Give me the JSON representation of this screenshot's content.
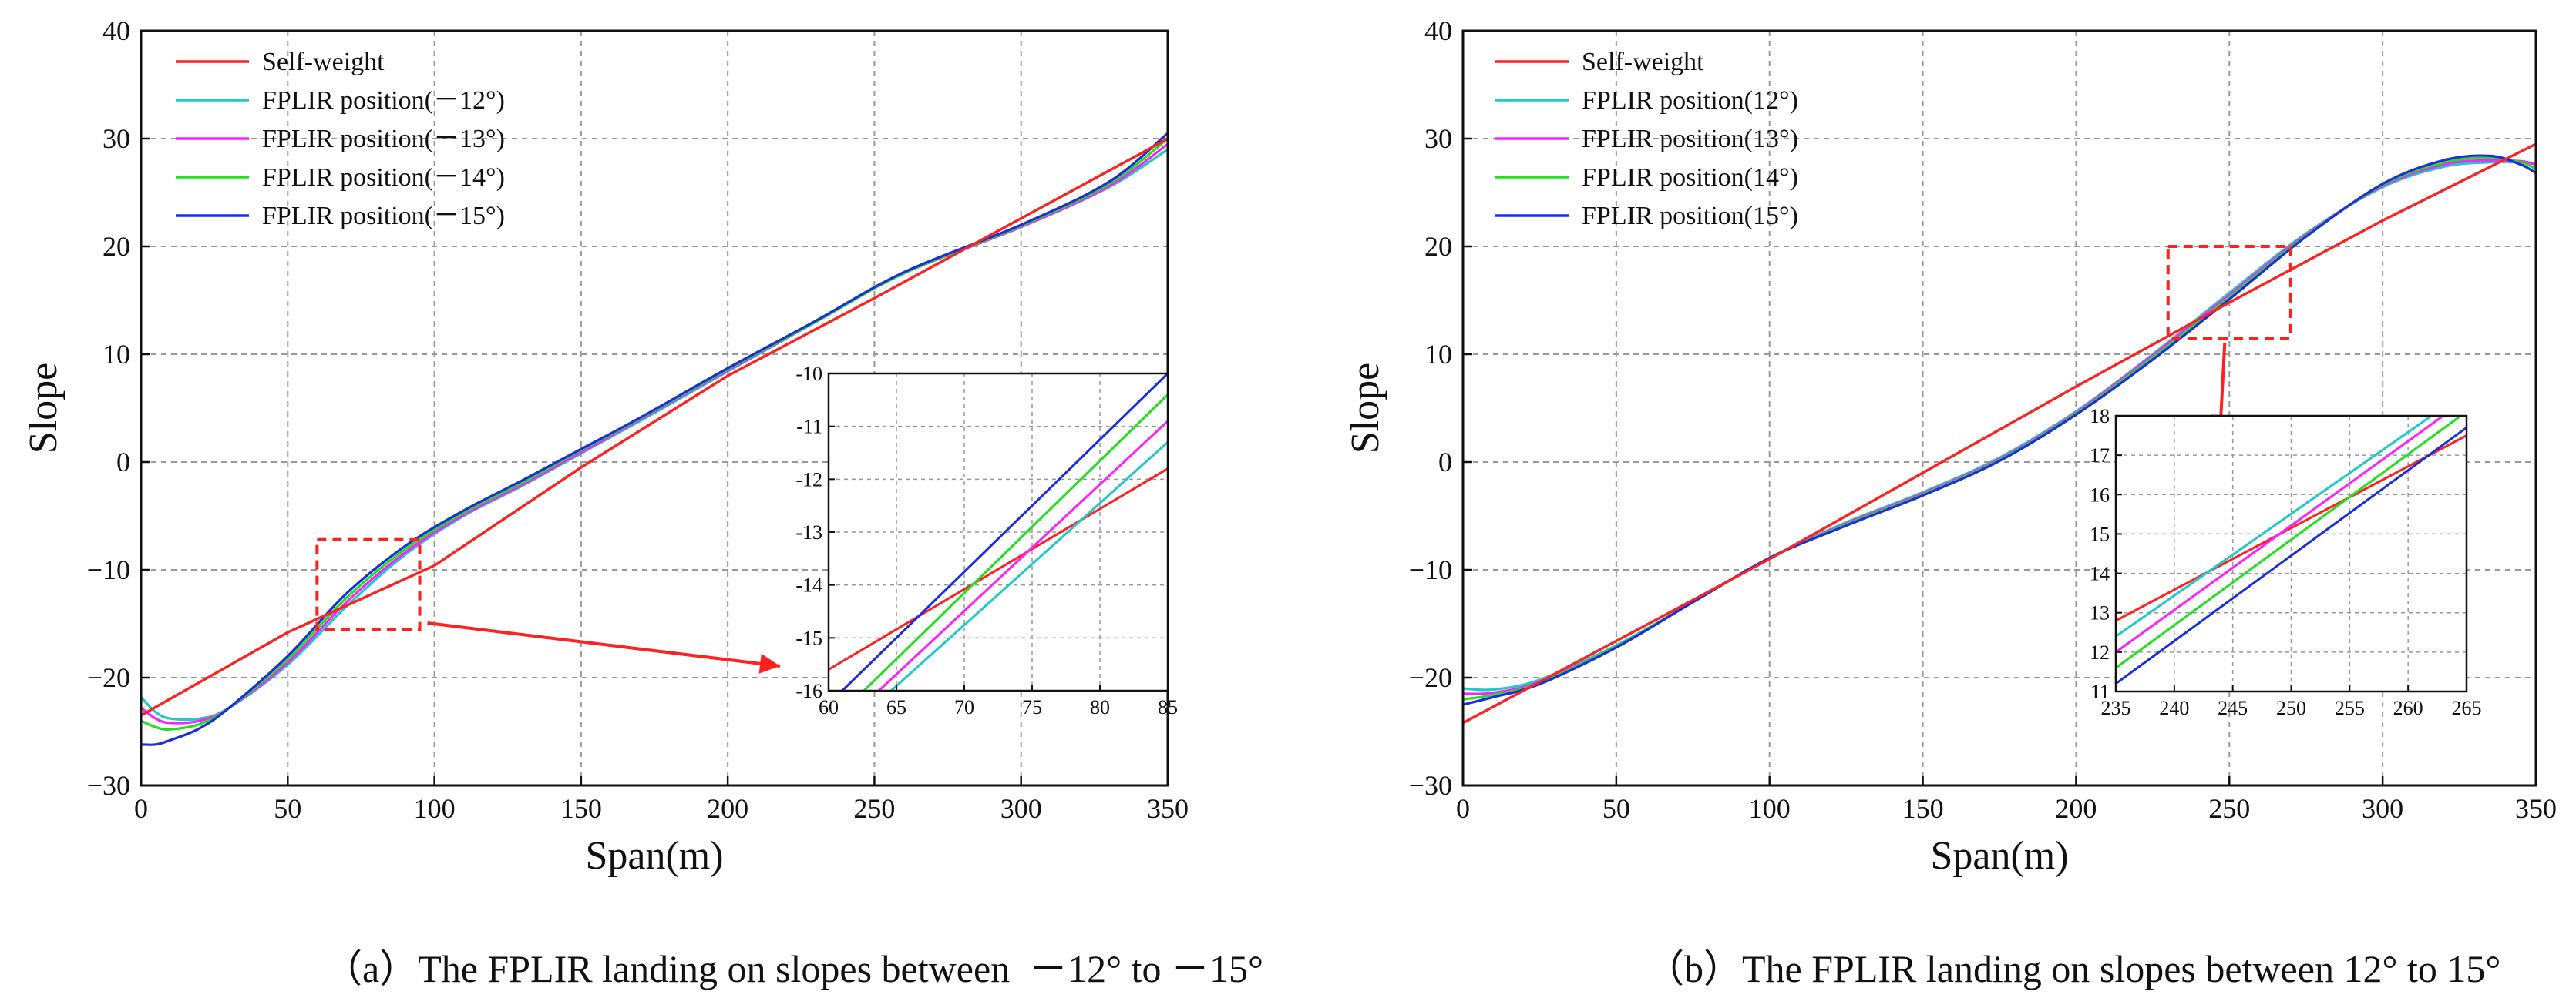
{
  "captions": [
    "（a）The FPLIR landing on slopes between  －12° to －15°",
    "（b）The FPLIR landing on slopes between 12° to 15°"
  ],
  "colors": {
    "self_weight": "#ff2020",
    "pos12": "#20c8c8",
    "pos13": "#ff20ff",
    "pos14": "#20e020",
    "pos15": "#1a2ee0",
    "grid": "#999999",
    "zoom_box": "#ff2020"
  },
  "chart_data": [
    {
      "type": "line",
      "id": "a",
      "xlabel": "Span(m)",
      "ylabel": "Slope",
      "xlim": [
        0,
        350
      ],
      "ylim": [
        -30,
        40
      ],
      "xticks": [
        0,
        50,
        100,
        150,
        200,
        250,
        300,
        350
      ],
      "yticks": [
        -30,
        -20,
        -10,
        0,
        10,
        20,
        30,
        40
      ],
      "ytick_labels": [
        "−30",
        "−20",
        "−10",
        "0",
        "10",
        "20",
        "30",
        "40"
      ],
      "grid": true,
      "legend_position": "top-left",
      "series": [
        {
          "name": "Self-weight",
          "color_key": "self_weight",
          "x": [
            0,
            50,
            100,
            150,
            200,
            250,
            300,
            340,
            350
          ],
          "y": [
            -23.5,
            -15.8,
            -9.6,
            -0.5,
            8.0,
            15.2,
            22.6,
            28.5,
            30.0
          ]
        },
        {
          "name": "FPLIR position(－12°)",
          "color_key": "pos12",
          "x": [
            0,
            5,
            10,
            20,
            30,
            50,
            70,
            90,
            110,
            130,
            150,
            170,
            200,
            230,
            260,
            300,
            330,
            350
          ],
          "y": [
            -21.8,
            -23.2,
            -23.8,
            -23.8,
            -22.8,
            -18.8,
            -13.4,
            -8.6,
            -5.0,
            -2.2,
            0.8,
            3.8,
            8.4,
            13.0,
            17.5,
            21.8,
            25.5,
            29.0
          ]
        },
        {
          "name": "FPLIR position(－13°)",
          "color_key": "pos13",
          "x": [
            0,
            5,
            10,
            20,
            30,
            50,
            70,
            90,
            110,
            130,
            150,
            170,
            200,
            230,
            260,
            300,
            330,
            350
          ],
          "y": [
            -22.8,
            -23.8,
            -24.2,
            -24.0,
            -22.8,
            -18.6,
            -13.0,
            -8.4,
            -4.9,
            -2.1,
            0.9,
            3.9,
            8.5,
            13.0,
            17.5,
            21.8,
            25.6,
            29.5
          ]
        },
        {
          "name": "FPLIR position(－14°)",
          "color_key": "pos14",
          "x": [
            0,
            5,
            10,
            20,
            30,
            50,
            70,
            90,
            110,
            130,
            150,
            170,
            200,
            230,
            260,
            300,
            330,
            350
          ],
          "y": [
            -24.0,
            -24.6,
            -24.8,
            -24.3,
            -22.8,
            -18.3,
            -12.6,
            -8.1,
            -4.7,
            -1.9,
            1.1,
            4.0,
            8.6,
            13.0,
            17.5,
            21.9,
            25.8,
            30.0
          ]
        },
        {
          "name": "FPLIR position(－15°)",
          "color_key": "pos15",
          "x": [
            0,
            5,
            10,
            20,
            30,
            50,
            70,
            90,
            110,
            130,
            150,
            170,
            200,
            230,
            260,
            300,
            330,
            350
          ],
          "y": [
            -26.2,
            -26.2,
            -25.8,
            -24.7,
            -22.8,
            -18.0,
            -12.2,
            -7.8,
            -4.5,
            -1.7,
            1.2,
            4.1,
            8.7,
            13.1,
            17.6,
            22.0,
            26.0,
            30.5
          ]
        }
      ],
      "zoom_box": {
        "x0": 60,
        "x1": 95,
        "y0": -15.5,
        "y1": -7.2
      },
      "inset": {
        "xlim": [
          60,
          85
        ],
        "ylim": [
          -16,
          -10
        ],
        "xticks": [
          60,
          65,
          70,
          75,
          80,
          85
        ],
        "yticks": [
          -16,
          -15,
          -14,
          -13,
          -12,
          -11,
          -10
        ],
        "ytick_labels": [
          "-16",
          "-15",
          "-14",
          "-13",
          "-12",
          "-11",
          "-10"
        ],
        "series": [
          {
            "color_key": "self_weight",
            "x": [
              60,
              85
            ],
            "y": [
              -15.6,
              -11.8
            ]
          },
          {
            "color_key": "pos12",
            "x": [
              64.6,
              85
            ],
            "y": [
              -16,
              -11.3
            ]
          },
          {
            "color_key": "pos13",
            "x": [
              63.7,
              85
            ],
            "y": [
              -16,
              -10.9
            ]
          },
          {
            "color_key": "pos14",
            "x": [
              62.6,
              85
            ],
            "y": [
              -16,
              -10.4
            ]
          },
          {
            "color_key": "pos15",
            "x": [
              61.0,
              85
            ],
            "y": [
              -16,
              -10.0
            ]
          }
        ]
      }
    },
    {
      "type": "line",
      "id": "b",
      "xlabel": "Span(m)",
      "ylabel": "Slope",
      "xlim": [
        0,
        350
      ],
      "ylim": [
        -30,
        40
      ],
      "xticks": [
        0,
        50,
        100,
        150,
        200,
        250,
        300,
        350
      ],
      "yticks": [
        -30,
        -20,
        -10,
        0,
        10,
        20,
        30,
        40
      ],
      "ytick_labels": [
        "−30",
        "−20",
        "−10",
        "0",
        "10",
        "20",
        "30",
        "40"
      ],
      "grid": true,
      "legend_position": "top-left",
      "series": [
        {
          "name": "Self-weight",
          "color_key": "self_weight",
          "x": [
            0,
            50,
            100,
            150,
            200,
            250,
            300,
            350
          ],
          "y": [
            -24.2,
            -16.6,
            -9.0,
            -1.0,
            7.0,
            14.8,
            22.4,
            29.5
          ]
        },
        {
          "name": "FPLIR position(12°)",
          "color_key": "pos12",
          "x": [
            0,
            10,
            25,
            50,
            75,
            100,
            125,
            150,
            175,
            200,
            225,
            250,
            275,
            300,
            320,
            335,
            345,
            350
          ],
          "y": [
            -21.0,
            -21.1,
            -20.2,
            -17.0,
            -13.0,
            -8.9,
            -5.6,
            -2.8,
            0.4,
            4.7,
            10.0,
            15.7,
            21.2,
            25.5,
            27.4,
            27.8,
            27.8,
            27.6
          ]
        },
        {
          "name": "FPLIR position(13°)",
          "color_key": "pos13",
          "x": [
            0,
            10,
            25,
            50,
            75,
            100,
            125,
            150,
            175,
            200,
            225,
            250,
            275,
            300,
            320,
            335,
            345,
            350
          ],
          "y": [
            -21.5,
            -21.4,
            -20.4,
            -17.1,
            -13.0,
            -8.9,
            -5.7,
            -2.9,
            0.3,
            4.6,
            9.9,
            15.5,
            21.1,
            25.6,
            27.6,
            28.0,
            27.9,
            27.6
          ]
        },
        {
          "name": "FPLIR position(14°)",
          "color_key": "pos14",
          "x": [
            0,
            10,
            25,
            50,
            75,
            100,
            125,
            150,
            175,
            200,
            225,
            250,
            275,
            300,
            320,
            335,
            345,
            350
          ],
          "y": [
            -22.0,
            -21.6,
            -20.5,
            -17.1,
            -13.0,
            -8.9,
            -5.8,
            -3.0,
            0.2,
            4.5,
            9.7,
            15.3,
            21.0,
            25.7,
            27.8,
            28.2,
            27.8,
            27.2
          ]
        },
        {
          "name": "FPLIR position(15°)",
          "color_key": "pos15",
          "x": [
            0,
            10,
            25,
            50,
            75,
            100,
            125,
            150,
            175,
            200,
            225,
            250,
            275,
            300,
            320,
            335,
            345,
            350
          ],
          "y": [
            -22.5,
            -21.8,
            -20.6,
            -17.2,
            -13.0,
            -8.9,
            -5.9,
            -3.1,
            0.1,
            4.4,
            9.5,
            15.1,
            20.9,
            25.8,
            28.0,
            28.4,
            27.6,
            26.8
          ]
        }
      ],
      "zoom_box": {
        "x0": 230,
        "x1": 270,
        "y0": 11.5,
        "y1": 20.0
      },
      "inset": {
        "xlim": [
          235,
          265
        ],
        "ylim": [
          11,
          18
        ],
        "xticks": [
          235,
          240,
          245,
          250,
          255,
          260,
          265
        ],
        "yticks": [
          11,
          12,
          13,
          14,
          15,
          16,
          17,
          18
        ],
        "ytick_labels": [
          "11",
          "12",
          "13",
          "14",
          "15",
          "16",
          "17",
          "18"
        ],
        "series": [
          {
            "color_key": "self_weight",
            "x": [
              235,
              265
            ],
            "y": [
              12.8,
              17.5
            ]
          },
          {
            "color_key": "pos12",
            "x": [
              235,
              262.0
            ],
            "y": [
              12.4,
              18
            ]
          },
          {
            "color_key": "pos13",
            "x": [
              235,
              263.0
            ],
            "y": [
              12.0,
              18
            ]
          },
          {
            "color_key": "pos14",
            "x": [
              235,
              264.5
            ],
            "y": [
              11.6,
              18
            ]
          },
          {
            "color_key": "pos15",
            "x": [
              235,
              265
            ],
            "y": [
              11.2,
              17.7
            ]
          }
        ]
      }
    }
  ]
}
